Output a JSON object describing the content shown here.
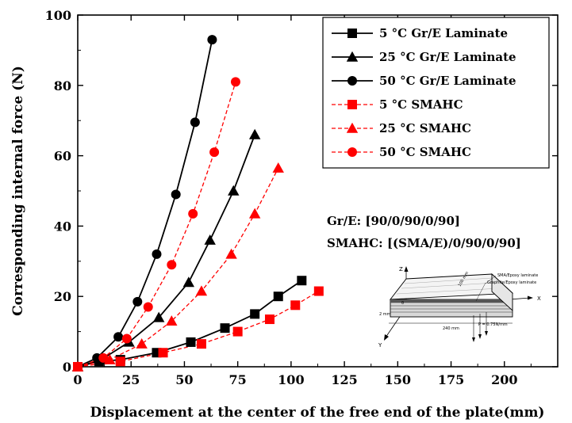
{
  "chart_data": {
    "type": "line",
    "title": "",
    "xlabel": "Displacement at the center of the free end of the plate(mm)",
    "ylabel": "Corresponding internal force (N)",
    "xlim": [
      0,
      225
    ],
    "ylim": [
      0,
      100
    ],
    "xticks": [
      0,
      25,
      50,
      75,
      100,
      125,
      150,
      175,
      200
    ],
    "yticks": [
      0,
      20,
      40,
      60,
      80,
      100
    ],
    "grid": false,
    "legend_position": "top-right",
    "series": [
      {
        "name": "5 °C  Gr/E Laminate",
        "marker": "square",
        "style": "solid",
        "color": "#000000",
        "x": [
          0,
          10,
          20,
          37,
          53,
          69,
          83,
          94,
          105
        ],
        "y": [
          0,
          1.5,
          2,
          4,
          7,
          11,
          15,
          20,
          24.5
        ]
      },
      {
        "name": "25 °C  Gr/E Laminate",
        "marker": "triangle",
        "style": "solid",
        "color": "#000000",
        "x": [
          0,
          11,
          24,
          38,
          52,
          62,
          73,
          83
        ],
        "y": [
          0,
          2,
          7,
          14,
          24,
          36,
          50,
          66
        ]
      },
      {
        "name": "50 °C  Gr/E Laminate",
        "marker": "circle",
        "style": "solid",
        "color": "#000000",
        "x": [
          0,
          9,
          19,
          28,
          37,
          46,
          55,
          63
        ],
        "y": [
          0,
          2.5,
          8.5,
          18.5,
          32,
          49,
          69.5,
          93
        ]
      },
      {
        "name": "5 °C   SMAHC",
        "marker": "square",
        "style": "dashed",
        "color": "#ff0000",
        "x": [
          0,
          20,
          40,
          58,
          75,
          90,
          102,
          113
        ],
        "y": [
          0,
          1.5,
          4,
          6.5,
          10,
          13.5,
          17.5,
          21.5
        ]
      },
      {
        "name": "25 °C   SMAHC",
        "marker": "triangle",
        "style": "dashed",
        "color": "#ff0000",
        "x": [
          0,
          15,
          30,
          44,
          58,
          72,
          83,
          94
        ],
        "y": [
          0,
          2,
          6.5,
          13,
          21.5,
          32,
          43.5,
          56.5
        ]
      },
      {
        "name": "50 °C   SMAHC",
        "marker": "circle",
        "style": "dashed",
        "color": "#ff0000",
        "x": [
          0,
          12,
          23,
          33,
          44,
          54,
          64,
          74
        ],
        "y": [
          0,
          2.5,
          8,
          17,
          29,
          43.5,
          61,
          81
        ]
      }
    ],
    "annotations": [
      "Gr/E: [90/0/90/0/90]",
      "SMAHC: [(SMA/E)/0/90/0/90]"
    ],
    "inset": {
      "axis_x": "X",
      "axis_y": "Y",
      "axis_z": "Z",
      "angle_label": "θ",
      "length_label": "240 mm",
      "width_label": "100 mm",
      "thickness_label": "2 mm",
      "layer_sma": "SMA/Epoxy laminate",
      "layer_graphite": "Graphite/Epoxy laminate",
      "load_label": "P = 0.75N/mm"
    }
  }
}
